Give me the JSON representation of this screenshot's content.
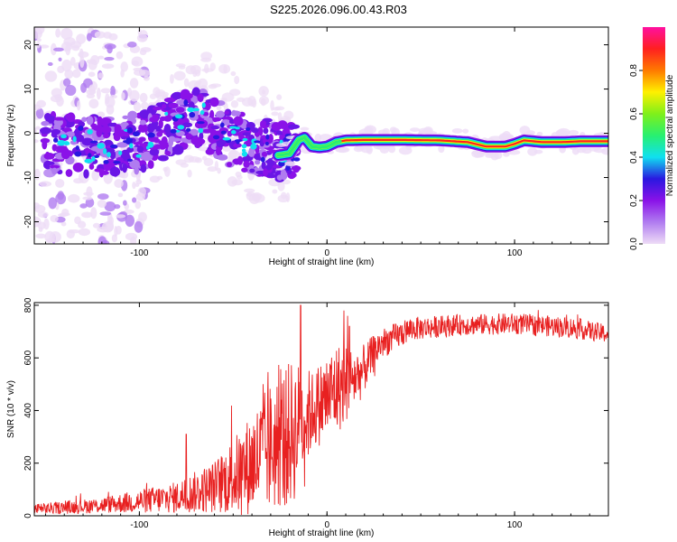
{
  "title": "S225.2026.096.00.43.R03",
  "chart_data": [
    {
      "type": "heatmap",
      "xlabel": "Height of straight line (km)",
      "ylabel": "Frequency (Hz)",
      "xlim": [
        -156,
        150
      ],
      "ylim": [
        -25,
        24
      ],
      "x_ticks": [
        -100,
        0,
        100
      ],
      "y_ticks": [
        -20,
        -10,
        0,
        10,
        20
      ],
      "colorbar": {
        "label": "Normalized spectral amplitude",
        "range": [
          0,
          1
        ],
        "ticks": [
          0.0,
          0.2,
          0.4,
          0.6,
          0.8
        ],
        "colors": [
          "#eedcf6",
          "#b07cf0",
          "#8a12e8",
          "#2a18e0",
          "#10e0f0",
          "#28f070",
          "#7ff01a",
          "#fff000",
          "#ff7a00",
          "#ff2020",
          "#ff10a0"
        ]
      },
      "ridge": [
        {
          "x": -26,
          "freq": -5.0
        },
        {
          "x": -20,
          "freq": -4.6
        },
        {
          "x": -15,
          "freq": -1.5
        },
        {
          "x": -12,
          "freq": -1.0
        },
        {
          "x": -8,
          "freq": -3.0
        },
        {
          "x": -4,
          "freq": -3.2
        },
        {
          "x": 0,
          "freq": -3.0
        },
        {
          "x": 5,
          "freq": -2.0
        },
        {
          "x": 10,
          "freq": -1.6
        },
        {
          "x": 20,
          "freq": -1.5
        },
        {
          "x": 40,
          "freq": -1.5
        },
        {
          "x": 60,
          "freq": -1.6
        },
        {
          "x": 75,
          "freq": -2.0
        },
        {
          "x": 85,
          "freq": -3.0
        },
        {
          "x": 95,
          "freq": -3.0
        },
        {
          "x": 100,
          "freq": -2.4
        },
        {
          "x": 105,
          "freq": -1.6
        },
        {
          "x": 115,
          "freq": -2.0
        },
        {
          "x": 125,
          "freq": -2.0
        },
        {
          "x": 135,
          "freq": -1.8
        },
        {
          "x": 150,
          "freq": -1.8
        }
      ]
    },
    {
      "type": "line",
      "xlabel": "Height of straight line (km)",
      "ylabel": "SNR (10 * v/v)",
      "xlim": [
        -156,
        150
      ],
      "ylim": [
        0,
        810
      ],
      "x_ticks": [
        -100,
        0,
        100
      ],
      "y_ticks": [
        0,
        200,
        400,
        600,
        800
      ],
      "line_color": "#e82020",
      "envelope": [
        {
          "x": -156,
          "mean": 25,
          "noise": 20
        },
        {
          "x": -120,
          "mean": 40,
          "noise": 30
        },
        {
          "x": -80,
          "mean": 70,
          "noise": 60
        },
        {
          "x": -60,
          "mean": 110,
          "noise": 100
        },
        {
          "x": -45,
          "mean": 170,
          "noise": 170
        },
        {
          "x": -30,
          "mean": 260,
          "noise": 250
        },
        {
          "x": -18,
          "mean": 320,
          "noise": 280
        },
        {
          "x": -8,
          "mean": 400,
          "noise": 150
        },
        {
          "x": 5,
          "mean": 480,
          "noise": 180
        },
        {
          "x": 18,
          "mean": 540,
          "noise": 100
        },
        {
          "x": 28,
          "mean": 650,
          "noise": 60
        },
        {
          "x": 45,
          "mean": 710,
          "noise": 45
        },
        {
          "x": 70,
          "mean": 725,
          "noise": 40
        },
        {
          "x": 100,
          "mean": 730,
          "noise": 40
        },
        {
          "x": 130,
          "mean": 715,
          "noise": 40
        },
        {
          "x": 150,
          "mean": 690,
          "noise": 35
        }
      ],
      "peaks": [
        {
          "x": -14,
          "value": 800
        },
        {
          "x": 9,
          "value": 780
        },
        {
          "x": 11,
          "value": 760
        },
        {
          "x": 12,
          "value": 720
        },
        {
          "x": -75,
          "value": 310
        },
        {
          "x": -34,
          "value": 500
        }
      ]
    }
  ]
}
